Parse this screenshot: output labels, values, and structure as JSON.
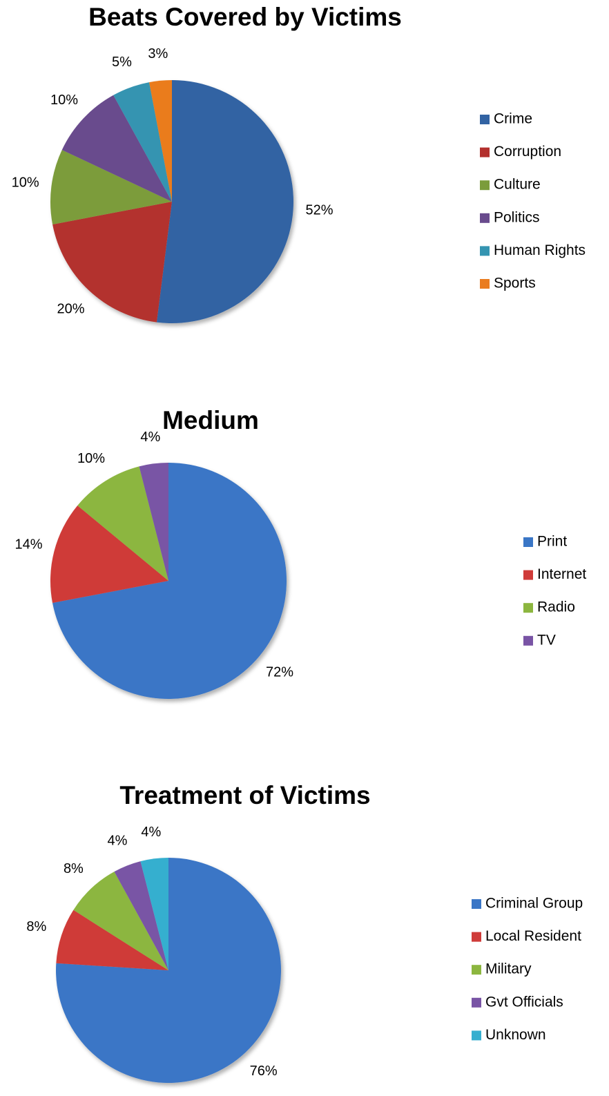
{
  "chart_data": [
    {
      "type": "pie",
      "title": "Beats Covered by Victims",
      "categories": [
        "Crime",
        "Corruption",
        "Culture",
        "Politics",
        "Human Rights",
        "Sports"
      ],
      "values": [
        52,
        20,
        10,
        10,
        5,
        3
      ],
      "value_labels": [
        "52%",
        "20%",
        "10%",
        "10%",
        "5%",
        "3%"
      ],
      "colors": [
        "#3263a3",
        "#b3302d",
        "#7b9c3b",
        "#694b8d",
        "#3494b1",
        "#ea7c1f"
      ]
    },
    {
      "type": "pie",
      "title": "Medium",
      "categories": [
        "Print",
        "Internet",
        "Radio",
        "TV"
      ],
      "values": [
        72,
        14,
        10,
        4
      ],
      "value_labels": [
        "72%",
        "14%",
        "10%",
        "4%"
      ],
      "colors": [
        "#3a76c6",
        "#cf3b39",
        "#8cb63f",
        "#7954a5"
      ]
    },
    {
      "type": "pie",
      "title": "Treatment of Victims",
      "categories": [
        "Criminal Group",
        "Local Resident",
        "Military",
        "Gvt Officials",
        "Unknown"
      ],
      "values": [
        76,
        8,
        8,
        4,
        4
      ],
      "value_labels": [
        "76%",
        "8%",
        "8%",
        "4%",
        "4%"
      ],
      "colors": [
        "#3a76c6",
        "#cf3b39",
        "#8cb63f",
        "#7954a5",
        "#36afcf"
      ]
    }
  ]
}
